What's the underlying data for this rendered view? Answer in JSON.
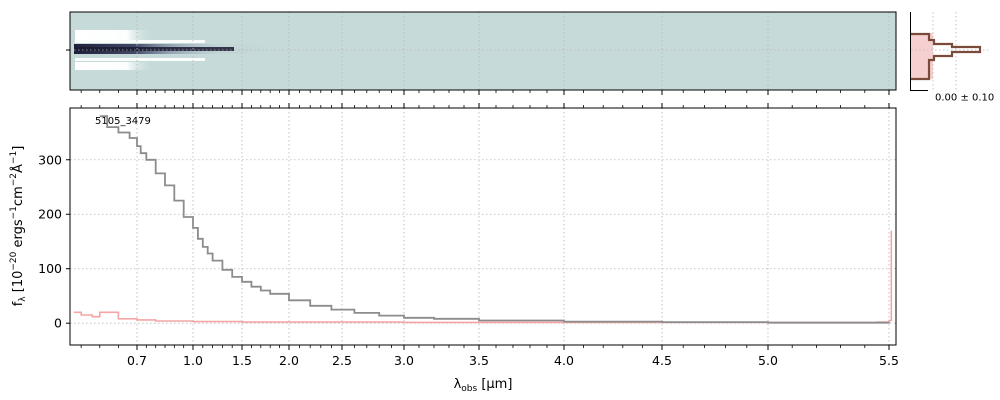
{
  "chart_data": [
    {
      "type": "heatmap",
      "panel": "2d-spectrum",
      "colormap": "bone_r",
      "background": "#c5dad9",
      "grid": true
    },
    {
      "type": "line",
      "panel": "spatial-profile",
      "tick_label": "0.00 ± 0.10",
      "series": [
        {
          "color": "#7a4b3a",
          "style": "step"
        },
        {
          "color": "#f4c8c8",
          "style": "fill"
        }
      ]
    },
    {
      "type": "line",
      "panel": "1d-spectrum",
      "annotation": "5105_3479",
      "xlabel_main": "λ",
      "xlabel_sub": "obs",
      "xlabel_unit": " [μm]",
      "ylabel": "f_λ [10^-20 ergs^-1 cm^-2 Å^-1]",
      "x_scale": "reciprocal-like (pixel grid)",
      "x_ticks": [
        0.7,
        1.0,
        1.5,
        2.0,
        2.5,
        3.0,
        3.5,
        4.0,
        4.5,
        5.0,
        5.5
      ],
      "x_tick_labels": [
        "0.7",
        "1.0",
        "1.5",
        "2.0",
        "2.5",
        "3.0",
        "3.5",
        "4.0",
        "4.5",
        "5.0",
        "5.5"
      ],
      "y_ticks": [
        0,
        100,
        200,
        300
      ],
      "y_tick_labels": [
        "0",
        "100",
        "200",
        "300"
      ],
      "ylim": [
        -40,
        395
      ],
      "xlim": [
        0.52,
        5.53
      ],
      "grid": true,
      "series": [
        {
          "color": "#8c8c8c",
          "style": "step",
          "x": [
            0.6,
            0.62,
            0.65,
            0.68,
            0.7,
            0.72,
            0.75,
            0.8,
            0.85,
            0.9,
            0.95,
            1.0,
            1.05,
            1.1,
            1.15,
            1.2,
            1.3,
            1.4,
            1.5,
            1.6,
            1.7,
            1.8,
            2.0,
            2.2,
            2.4,
            2.6,
            2.8,
            3.0,
            3.2,
            3.5,
            4.0,
            4.5,
            5.0,
            5.5
          ],
          "y": [
            380,
            360,
            350,
            340,
            325,
            312,
            300,
            275,
            253,
            225,
            195,
            175,
            155,
            140,
            128,
            115,
            98,
            85,
            76,
            67,
            60,
            54,
            42,
            32,
            25,
            19,
            14,
            10,
            8,
            5,
            3,
            2,
            1,
            0
          ]
        },
        {
          "color": "#f4a6a6",
          "style": "step",
          "x": [
            0.53,
            0.55,
            0.58,
            0.6,
            0.65,
            0.7,
            0.8,
            1.0,
            1.5,
            2.0,
            3.0,
            4.0,
            5.0,
            5.45,
            5.5,
            5.51
          ],
          "y": [
            20,
            15,
            12,
            20,
            8,
            6,
            4,
            3,
            2,
            2,
            1.5,
            1.5,
            1.5,
            2,
            5,
            170
          ]
        }
      ]
    }
  ]
}
